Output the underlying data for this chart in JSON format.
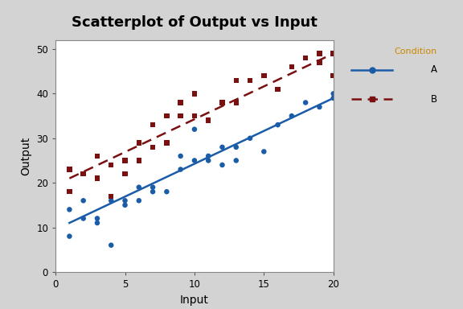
{
  "title": "Scatterplot of Output vs Input",
  "xlabel": "Input",
  "ylabel": "Output",
  "xlim": [
    0,
    20
  ],
  "ylim": [
    0,
    52
  ],
  "xticks": [
    0,
    5,
    10,
    15,
    20
  ],
  "yticks": [
    0,
    10,
    20,
    30,
    40,
    50
  ],
  "background_color": "#d3d3d3",
  "plot_bg_color": "#ffffff",
  "title_fontsize": 13,
  "axis_label_fontsize": 10,
  "legend_title": "Condition",
  "legend_title_color": "#cc8800",
  "A_color": "#1a5ca8",
  "B_color": "#7a1010",
  "A_x": [
    1,
    1,
    2,
    2,
    3,
    3,
    4,
    4,
    5,
    5,
    6,
    6,
    7,
    7,
    8,
    9,
    9,
    10,
    10,
    11,
    11,
    12,
    12,
    13,
    13,
    14,
    15,
    16,
    17,
    18,
    19,
    20,
    20
  ],
  "A_y": [
    14,
    8,
    16,
    12,
    12,
    11,
    16,
    6,
    15,
    16,
    19,
    16,
    18,
    19,
    18,
    23,
    26,
    25,
    32,
    25,
    26,
    24,
    28,
    28,
    25,
    30,
    27,
    33,
    35,
    38,
    37,
    39,
    40
  ],
  "B_x": [
    1,
    1,
    2,
    3,
    3,
    4,
    4,
    5,
    5,
    6,
    6,
    7,
    7,
    8,
    8,
    9,
    9,
    10,
    10,
    11,
    12,
    13,
    13,
    14,
    15,
    16,
    17,
    18,
    19,
    19,
    20,
    20
  ],
  "B_y": [
    23,
    18,
    22,
    26,
    21,
    24,
    17,
    25,
    22,
    29,
    25,
    28,
    33,
    35,
    29,
    38,
    35,
    40,
    35,
    34,
    38,
    43,
    38,
    43,
    44,
    41,
    46,
    48,
    49,
    47,
    49,
    44
  ],
  "A_line_x": [
    1,
    20
  ],
  "A_line_y": [
    11,
    39
  ],
  "B_line_x": [
    1,
    20
  ],
  "B_line_y": [
    21,
    49
  ]
}
